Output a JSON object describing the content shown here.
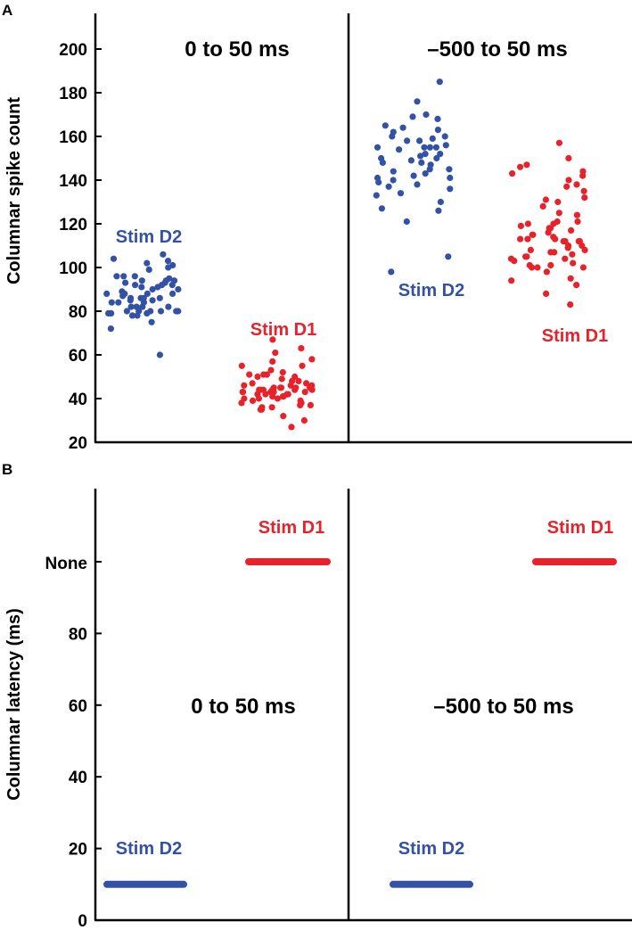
{
  "chart_data": [
    {
      "panel": "A",
      "type": "scatter",
      "ylabel": "Columnar spike count",
      "ylim": [
        20,
        215
      ],
      "yticks": [
        20,
        40,
        60,
        80,
        100,
        120,
        140,
        160,
        180,
        200
      ],
      "grid": false,
      "colors": {
        "Stim D2": "#3352a6",
        "Stim D1": "#e8222b"
      },
      "windows": [
        {
          "title": "0 to 50 ms",
          "series": [
            {
              "name": "Stim D2",
              "label": "Stim D2",
              "y": [
                60,
                79,
                80,
                93,
                94,
                80,
                82,
                84,
                86,
                88,
                99,
                80,
                96,
                103,
                85,
                82,
                87,
                90,
                91,
                95,
                100,
                79,
                75,
                94,
                89,
                92,
                96,
                101,
                84,
                86,
                102,
                78,
                92,
                88,
                104,
                85,
                80,
                96,
                88,
                106,
                82,
                90,
                79,
                94,
                93,
                86,
                84,
                78,
                80,
                92,
                86,
                82,
                91,
                72,
                88,
                80
              ]
            },
            {
              "name": "Stim D1",
              "label": "Stim D1",
              "y": [
                63,
                45,
                46,
                51,
                44,
                58,
                57,
                55,
                40,
                32,
                50,
                42,
                43,
                36,
                51,
                44,
                61,
                42,
                47,
                39,
                44,
                37,
                41,
                48,
                43,
                46,
                53,
                45,
                49,
                40,
                43,
                44,
                38,
                55,
                42,
                44,
                35,
                52,
                50,
                37,
                45,
                41,
                51,
                39,
                43,
                46,
                48,
                35,
                42,
                47,
                45,
                40,
                44,
                36,
                41,
                43,
                27,
                38,
                45,
                67,
                30
              ]
            }
          ]
        },
        {
          "title": "–500 to 50 ms",
          "series": [
            {
              "name": "Stim D2",
              "label": "Stim D2",
              "y": [
                105,
                98,
                144,
                155,
                150,
                158,
                130,
                138,
                127,
                148,
                162,
                169,
                165,
                160,
                155,
                142,
                136,
                147,
                168,
                145,
                140,
                151,
                156,
                170,
                150,
                133,
                160,
                152,
                163,
                143,
                164,
                149,
                154,
                159,
                148,
                176,
                139,
                155,
                152,
                141,
                141,
                134,
                185,
                126,
                137,
                121,
                145,
                158,
                155
              ]
            },
            {
              "name": "Stim D1",
              "label": "Stim D1",
              "y": [
                94,
                105,
                112,
                102,
                108,
                118,
                125,
                132,
                113,
                116,
                100,
                106,
                121,
                95,
                92,
                88,
                83,
                110,
                114,
                105,
                130,
                104,
                103,
                113,
                142,
                147,
                120,
                115,
                157,
                131,
                138,
                144,
                104,
                112,
                101,
                128,
                124,
                101,
                115,
                98,
                110,
                121,
                100,
                117,
                150,
                112,
                120,
                140,
                146,
                109,
                100,
                107,
                108,
                137,
                143,
                119,
                118,
                113,
                135,
                112,
                107
              ]
            }
          ]
        }
      ]
    },
    {
      "panel": "B",
      "type": "scatter",
      "ylabel": "Columnar  latency (ms)",
      "ylim": [
        0,
        118
      ],
      "yticks": [
        0,
        20,
        40,
        60,
        80
      ],
      "ytick_labels": [
        "0",
        "20",
        "40",
        "60",
        "80"
      ],
      "none_label": "None",
      "none_value": 100,
      "grid": false,
      "windows": [
        {
          "title": "0 to 50 ms",
          "series": [
            {
              "name": "Stim D2",
              "label": "Stim D2",
              "y": 10,
              "n": 56
            },
            {
              "name": "Stim D1",
              "label": "Stim D1",
              "y": "None",
              "n": 61
            }
          ]
        },
        {
          "title": "–500 to 50 ms",
          "series": [
            {
              "name": "Stim D2",
              "label": "Stim D2",
              "y": 10,
              "n": 49
            },
            {
              "name": "Stim D1",
              "label": "Stim D1",
              "y": "None",
              "n": 61
            }
          ]
        }
      ]
    }
  ]
}
